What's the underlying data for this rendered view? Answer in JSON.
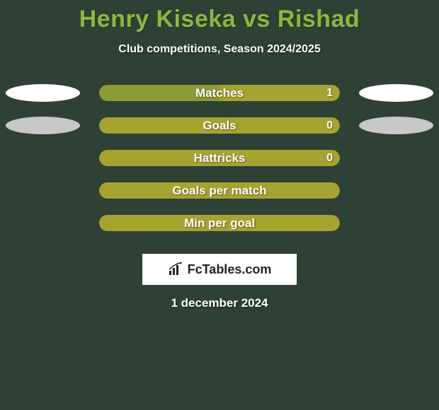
{
  "title": "Henry Kiseka vs Rishad",
  "subtitle": "Club competitions, Season 2024/2025",
  "date": "1 december 2024",
  "logo_text": "FcTables.com",
  "colors": {
    "page_bg": "#2f4035",
    "title": "#8bb83f",
    "subtitle": "#ffffff",
    "bar_primary": "#a7a330",
    "bar_secondary": "#8c9a38",
    "ellipse": "#ffffff",
    "ellipse_dim": "#d8d8d8",
    "bar_text": "#ffffff"
  },
  "rows": [
    {
      "label": "Matches",
      "value_right": "1",
      "show_value": true,
      "left_ellipse": true,
      "right_ellipse": true,
      "ellipse_dim": false,
      "fill": "split",
      "left_pct": 50,
      "left_color": "#8c9a38",
      "right_color": "#a7a330"
    },
    {
      "label": "Goals",
      "value_right": "0",
      "show_value": true,
      "left_ellipse": true,
      "right_ellipse": true,
      "ellipse_dim": true,
      "fill": "full",
      "full_color": "#a7a330"
    },
    {
      "label": "Hattricks",
      "value_right": "0",
      "show_value": true,
      "left_ellipse": false,
      "right_ellipse": false,
      "fill": "full",
      "full_color": "#a7a330"
    },
    {
      "label": "Goals per match",
      "value_right": "",
      "show_value": false,
      "left_ellipse": false,
      "right_ellipse": false,
      "fill": "full",
      "full_color": "#a7a330"
    },
    {
      "label": "Min per goal",
      "value_right": "",
      "show_value": false,
      "left_ellipse": false,
      "right_ellipse": false,
      "fill": "full",
      "full_color": "#a7a330"
    }
  ]
}
